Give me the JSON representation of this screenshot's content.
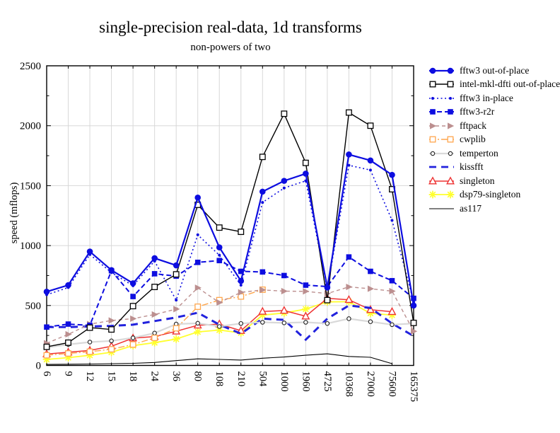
{
  "chart_data": {
    "type": "line",
    "title": "single-precision real-data, 1d transforms",
    "subtitle": "non-powers of two",
    "ylabel": "speed (mflops)",
    "ylim": [
      0,
      2500
    ],
    "yticks": [
      0,
      500,
      1000,
      1500,
      2000,
      2500
    ],
    "yticks_minor_step": 250,
    "grid": true,
    "grid_color": "#d8d8d8",
    "legend_position": "right",
    "categories": [
      6,
      9,
      12,
      15,
      18,
      24,
      36,
      80,
      108,
      210,
      504,
      1000,
      1960,
      4725,
      10368,
      27000,
      75600,
      165375
    ],
    "series": [
      {
        "name": "fftw3 out-of-place",
        "color": "#0d0de0",
        "dash": "",
        "width": 2.2,
        "marker": "circle",
        "values": [
          615,
          670,
          950,
          795,
          685,
          895,
          835,
          1400,
          985,
          705,
          1450,
          1540,
          1600,
          650,
          1760,
          1710,
          1590,
          500
        ]
      },
      {
        "name": "intel-mkl-dfti out-of-place",
        "color": "#000000",
        "dash": "",
        "width": 1.4,
        "marker": "square-open",
        "values": [
          155,
          190,
          315,
          300,
          495,
          655,
          760,
          1340,
          1150,
          1115,
          1740,
          2100,
          1690,
          545,
          2110,
          2000,
          1470,
          355
        ]
      },
      {
        "name": "fftw3 in-place",
        "color": "#0d0de0",
        "dash": "2 3.5",
        "width": 1.6,
        "marker": "dot",
        "values": [
          590,
          650,
          925,
          775,
          665,
          870,
          545,
          1090,
          920,
          670,
          1360,
          1480,
          1540,
          640,
          1670,
          1630,
          1210,
          530
        ]
      },
      {
        "name": "fftw3-r2r",
        "color": "#0d0de0",
        "dash": "7 4",
        "width": 2,
        "marker": "square",
        "values": [
          320,
          345,
          335,
          790,
          575,
          765,
          745,
          860,
          875,
          785,
          780,
          750,
          670,
          658,
          905,
          785,
          707,
          560
        ]
      },
      {
        "name": "fftpack",
        "color": "#bc8f8f",
        "dash": "5 4",
        "width": 1.4,
        "marker": "triangle-right",
        "values": [
          185,
          260,
          345,
          375,
          390,
          425,
          470,
          648,
          525,
          610,
          630,
          620,
          618,
          600,
          655,
          640,
          620,
          285
        ]
      },
      {
        "name": "cwplib",
        "color": "#ffa64d",
        "dash": "9 3 2 3",
        "width": 1.4,
        "marker": "square-open",
        "values": [
          85,
          100,
          115,
          135,
          175,
          230,
          310,
          490,
          545,
          575,
          632,
          null,
          null,
          null,
          null,
          null,
          null,
          null
        ]
      },
      {
        "name": "temperton",
        "color": "#d9d9d9",
        "marker_color": "#222222",
        "dash": "",
        "width": 2.2,
        "marker": "circle-open",
        "values": [
          150,
          175,
          195,
          205,
          230,
          270,
          345,
          352,
          325,
          350,
          360,
          355,
          360,
          350,
          390,
          365,
          340,
          350
        ]
      },
      {
        "name": "kissfft",
        "color": "#2222dd",
        "dash": "10 7",
        "width": 3,
        "marker": "none",
        "values": [
          320,
          320,
          325,
          330,
          340,
          370,
          400,
          440,
          340,
          265,
          390,
          380,
          215,
          390,
          500,
          480,
          350,
          245
        ]
      },
      {
        "name": "singleton",
        "color": "#ee3333",
        "dash": "",
        "width": 1.5,
        "marker": "triangle-up-open",
        "values": [
          95,
          110,
          125,
          160,
          228,
          240,
          285,
          335,
          345,
          290,
          450,
          458,
          410,
          560,
          548,
          465,
          448,
          null
        ]
      },
      {
        "name": "dsp79-singleton",
        "color": "#ffff2e",
        "dash": "",
        "width": 1.8,
        "marker": "asterisk",
        "values": [
          50,
          65,
          85,
          110,
          165,
          190,
          220,
          280,
          295,
          272,
          420,
          438,
          470,
          530,
          532,
          435,
          420,
          null
        ]
      },
      {
        "name": "as117",
        "color": "#000000",
        "dash": "",
        "width": 1.1,
        "marker": "none",
        "values": [
          8,
          10,
          12,
          15,
          18,
          25,
          40,
          55,
          50,
          45,
          60,
          70,
          85,
          97,
          75,
          68,
          15,
          null
        ]
      }
    ]
  }
}
